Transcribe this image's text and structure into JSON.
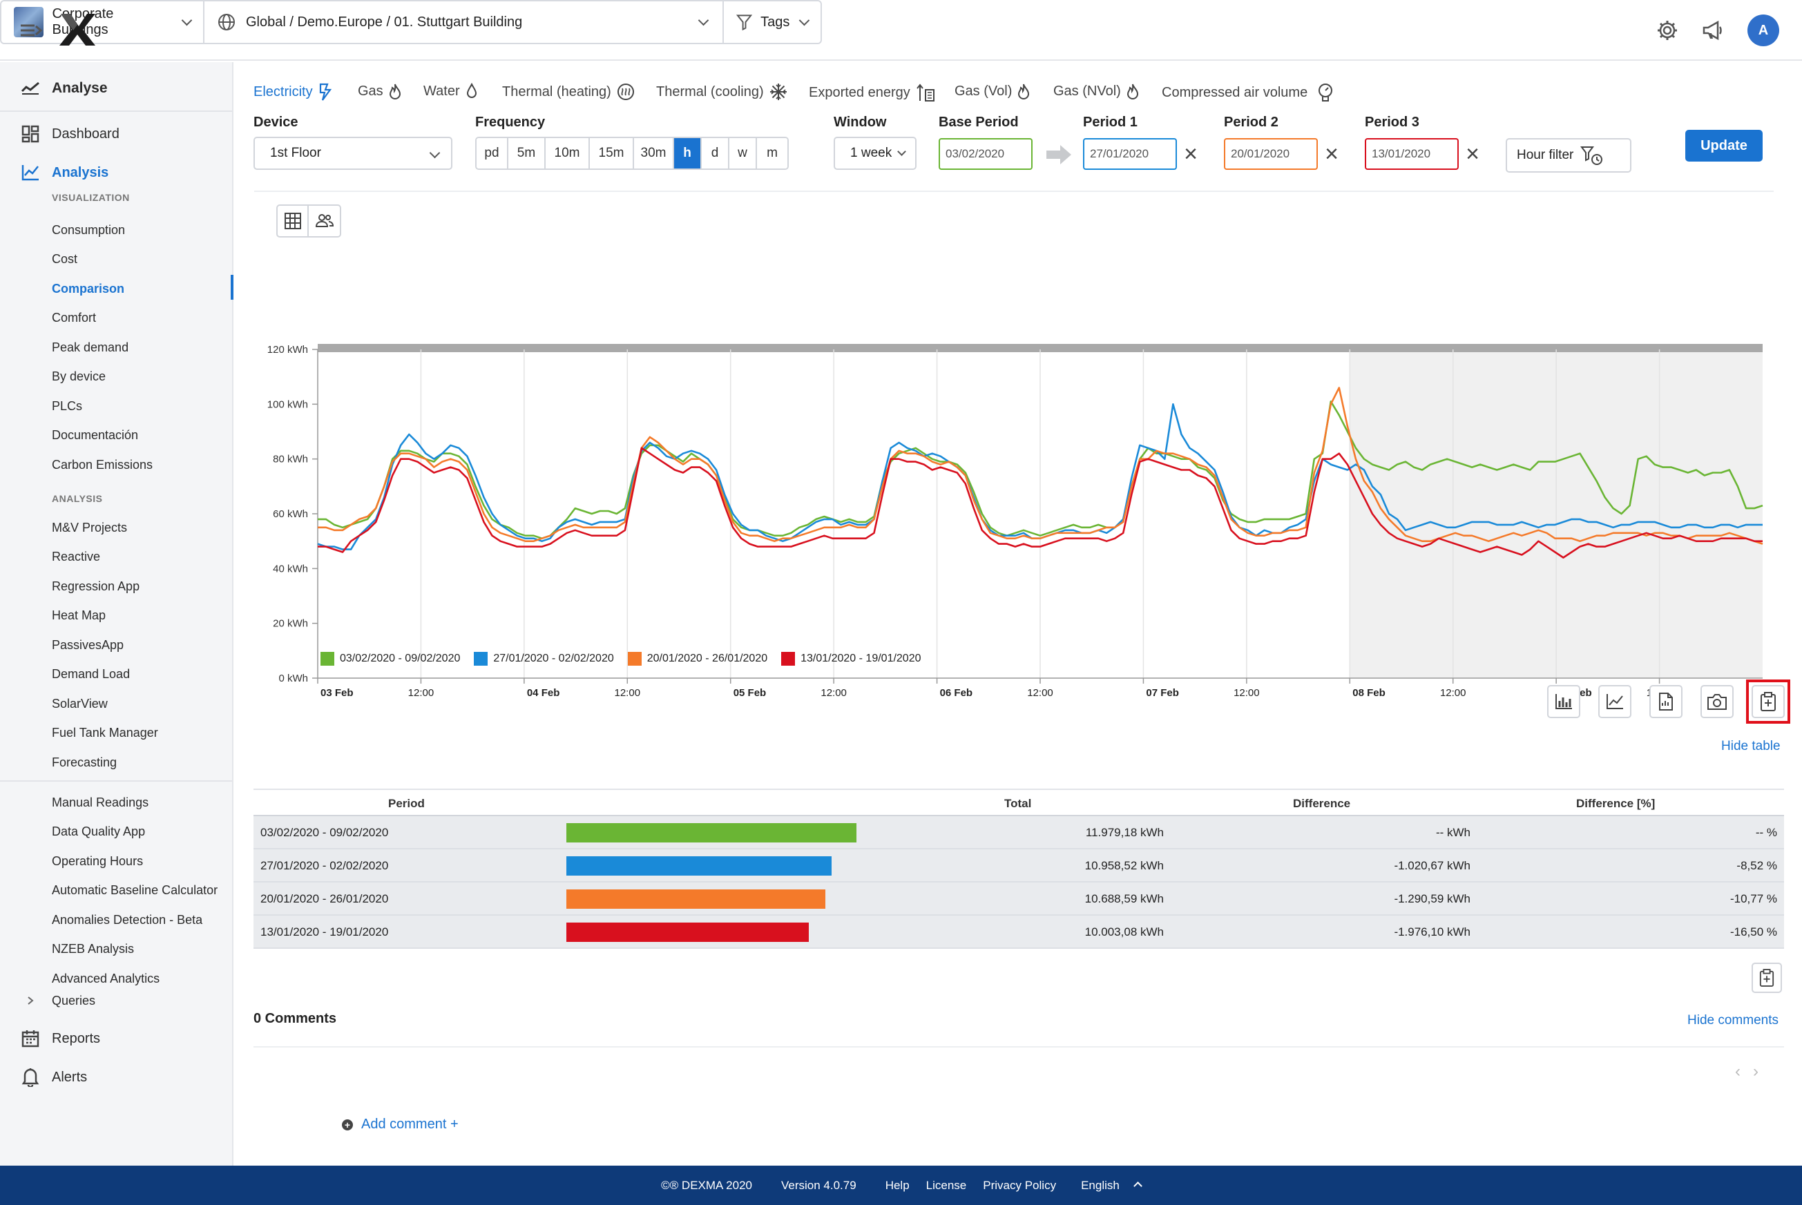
{
  "topbar": {
    "building_selector": "Corporate Buildings",
    "location_path": "Global / Demo.Europe / 01. Stuttgart Building",
    "tags_label": "Tags",
    "avatar_initial": "A"
  },
  "sidebar": {
    "analyse_header": "Analyse",
    "dashboard": "Dashboard",
    "analysis": "Analysis",
    "visualization_section": "VISUALIZATION",
    "visualization_items": [
      "Consumption",
      "Cost",
      "Comparison",
      "Comfort",
      "Peak demand",
      "By device",
      "PLCs",
      "Documentación",
      "Carbon Emissions"
    ],
    "analysis_section": "ANALYSIS",
    "analysis_items": [
      "M&V Projects",
      "Reactive",
      "Regression App",
      "Heat Map",
      "PassivesApp",
      "Demand Load",
      "SolarView",
      "Fuel Tank Manager",
      "Forecasting"
    ],
    "tool_items": [
      "Manual Readings",
      "Data Quality App",
      "Operating Hours",
      "Automatic Baseline Calculator",
      "Anomalies Detection - Beta",
      "NZEB Analysis",
      "Advanced Analytics"
    ],
    "queries": "Queries",
    "reports": "Reports",
    "alerts": "Alerts",
    "active_item": "Comparison"
  },
  "energy_tabs": [
    "Electricity",
    "Gas",
    "Water",
    "Thermal (heating)",
    "Thermal (cooling)",
    "Exported energy",
    "Gas (Vol)",
    "Gas (NVol)",
    "Compressed air volume"
  ],
  "controls": {
    "device_label": "Device",
    "device_value": "1st Floor",
    "frequency_label": "Frequency",
    "frequency_options": [
      "pd",
      "5m",
      "10m",
      "15m",
      "30m",
      "h",
      "d",
      "w",
      "m"
    ],
    "frequency_selected": "h",
    "window_label": "Window",
    "window_value": "1 week",
    "base_period_label": "Base Period",
    "base_period_value": "03/02/2020",
    "period1_label": "Period 1",
    "period1_value": "27/01/2020",
    "period2_label": "Period 2",
    "period2_value": "20/01/2020",
    "period3_label": "Period 3",
    "period3_value": "13/01/2020",
    "hour_filter_label": "Hour filter",
    "update_label": "Update"
  },
  "colors": {
    "base": "#6ab534",
    "period1": "#1a8ad8",
    "period2": "#f47a2a",
    "period3": "#d8101e",
    "accent": "#1a73d0",
    "footer": "#0e3a79"
  },
  "chart_data": {
    "type": "line",
    "title": "",
    "ylabel": "",
    "ylim": [
      0,
      120
    ],
    "y_ticks": [
      "0 kWh",
      "20 kWh",
      "40 kWh",
      "60 kWh",
      "80 kWh",
      "100 kWh",
      "120 kWh"
    ],
    "x_ticks": [
      "03 Feb",
      "12:00",
      "04 Feb",
      "12:00",
      "05 Feb",
      "12:00",
      "06 Feb",
      "12:00",
      "07 Feb",
      "12:00",
      "08 Feb",
      "12:00",
      "09 Feb",
      "12:00"
    ],
    "x_hours_range": [
      0,
      168
    ],
    "shaded_region_hours": [
      120,
      168
    ],
    "grid": "vertical",
    "legend_position": "bottom-left",
    "series": [
      {
        "name": "03/02/2020 - 09/02/2020",
        "color_key": "base",
        "values": [
          58,
          58,
          56,
          55,
          56,
          57,
          58,
          62,
          70,
          80,
          83,
          83,
          82,
          80,
          79,
          82,
          82,
          81,
          78,
          70,
          63,
          58,
          56,
          55,
          53,
          52,
          52,
          51,
          52,
          55,
          58,
          62,
          61,
          60,
          61,
          61,
          60,
          62,
          74,
          82,
          85,
          85,
          83,
          81,
          79,
          82,
          80,
          78,
          74,
          66,
          58,
          55,
          54,
          54,
          53,
          52,
          52,
          53,
          55,
          56,
          58,
          59,
          58,
          57,
          58,
          57,
          57,
          59,
          72,
          79,
          82,
          83,
          84,
          82,
          80,
          79,
          79,
          78,
          75,
          68,
          60,
          55,
          53,
          52,
          53,
          54,
          53,
          52,
          53,
          54,
          55,
          56,
          55,
          55,
          56,
          55,
          55,
          58,
          70,
          80,
          84,
          82,
          82,
          81,
          80,
          80,
          77,
          76,
          73,
          65,
          60,
          58,
          57,
          57,
          58,
          58,
          58,
          58,
          59,
          60,
          80,
          82,
          101,
          96,
          90,
          84,
          80,
          78,
          77,
          76,
          78,
          79,
          77,
          76,
          78,
          79,
          80,
          79,
          78,
          77,
          78,
          77,
          76,
          77,
          78,
          77,
          76,
          79,
          79,
          79,
          80,
          81,
          82,
          77,
          72,
          66,
          62,
          60,
          63,
          80,
          81,
          78,
          77,
          77,
          76,
          75,
          76,
          74,
          75,
          75,
          76,
          70,
          62,
          62,
          63
        ]
      },
      {
        "name": "27/01/2020 - 02/02/2020",
        "color_key": "period1",
        "values": [
          49,
          48,
          48,
          47,
          47,
          52,
          55,
          58,
          66,
          78,
          85,
          89,
          86,
          82,
          80,
          82,
          85,
          84,
          81,
          74,
          66,
          60,
          56,
          54,
          52,
          51,
          51,
          50,
          51,
          55,
          57,
          58,
          57,
          56,
          57,
          57,
          57,
          58,
          73,
          83,
          86,
          84,
          81,
          80,
          82,
          83,
          82,
          80,
          76,
          67,
          60,
          56,
          54,
          54,
          52,
          51,
          50,
          51,
          53,
          55,
          57,
          58,
          58,
          56,
          57,
          56,
          56,
          58,
          72,
          84,
          86,
          84,
          83,
          81,
          82,
          81,
          79,
          77,
          74,
          66,
          58,
          54,
          52,
          52,
          52,
          53,
          51,
          51,
          52,
          53,
          54,
          54,
          53,
          53,
          54,
          53,
          55,
          58,
          73,
          85,
          84,
          83,
          80,
          100,
          89,
          84,
          82,
          79,
          76,
          68,
          59,
          55,
          54,
          52,
          54,
          53,
          53,
          55,
          56,
          58,
          72,
          80,
          78,
          77,
          76,
          78,
          76,
          70,
          67,
          60,
          58,
          54,
          55,
          56,
          57,
          56,
          55,
          55,
          56,
          57,
          57,
          57,
          56,
          56,
          56,
          57,
          56,
          55,
          56,
          56,
          57,
          58,
          58,
          57,
          57,
          56,
          55,
          56,
          56,
          57,
          57,
          57,
          56,
          55,
          55,
          56,
          56,
          55,
          55,
          56,
          56,
          55,
          56,
          56,
          56
        ]
      },
      {
        "name": "20/01/2020 - 26/01/2020",
        "color_key": "period2",
        "values": [
          55,
          55,
          54,
          54,
          56,
          58,
          59,
          62,
          70,
          79,
          82,
          82,
          81,
          80,
          77,
          79,
          80,
          79,
          76,
          68,
          60,
          55,
          53,
          52,
          51,
          50,
          50,
          51,
          52,
          54,
          55,
          56,
          55,
          55,
          55,
          55,
          55,
          57,
          71,
          84,
          88,
          86,
          83,
          80,
          78,
          80,
          80,
          78,
          74,
          65,
          57,
          53,
          52,
          52,
          51,
          50,
          51,
          51,
          52,
          53,
          54,
          55,
          55,
          55,
          56,
          55,
          55,
          58,
          70,
          80,
          83,
          82,
          82,
          81,
          79,
          78,
          79,
          77,
          74,
          65,
          58,
          53,
          52,
          51,
          51,
          52,
          51,
          51,
          52,
          53,
          53,
          53,
          53,
          53,
          54,
          55,
          55,
          57,
          70,
          80,
          80,
          83,
          82,
          82,
          81,
          80,
          78,
          77,
          74,
          66,
          58,
          55,
          53,
          52,
          52,
          53,
          53,
          54,
          54,
          55,
          75,
          83,
          100,
          106,
          92,
          80,
          72,
          68,
          62,
          58,
          55,
          52,
          51,
          50,
          50,
          51,
          52,
          53,
          52,
          52,
          51,
          50,
          51,
          52,
          53,
          52,
          53,
          54,
          53,
          51,
          51,
          51,
          50,
          51,
          52,
          52,
          53,
          53,
          53,
          53,
          52,
          53,
          53,
          52,
          52,
          51,
          52,
          52,
          52,
          52,
          53,
          52,
          51,
          50,
          49
        ]
      },
      {
        "name": "13/01/2020 - 19/01/2020",
        "color_key": "period3",
        "values": [
          48,
          48,
          47,
          46,
          50,
          52,
          54,
          57,
          65,
          74,
          80,
          80,
          79,
          77,
          75,
          76,
          77,
          76,
          73,
          65,
          57,
          52,
          50,
          49,
          48,
          48,
          48,
          48,
          49,
          51,
          53,
          54,
          53,
          52,
          52,
          52,
          52,
          54,
          69,
          84,
          82,
          80,
          78,
          76,
          75,
          77,
          77,
          75,
          72,
          63,
          55,
          51,
          49,
          48,
          48,
          48,
          48,
          48,
          49,
          50,
          51,
          52,
          51,
          51,
          51,
          51,
          51,
          53,
          67,
          80,
          80,
          79,
          79,
          78,
          76,
          77,
          76,
          75,
          71,
          62,
          54,
          51,
          49,
          49,
          48,
          49,
          48,
          48,
          49,
          50,
          51,
          51,
          51,
          51,
          51,
          50,
          51,
          53,
          67,
          79,
          80,
          79,
          78,
          77,
          76,
          76,
          74,
          73,
          70,
          62,
          54,
          51,
          50,
          49,
          49,
          50,
          50,
          51,
          51,
          52,
          68,
          80,
          80,
          82,
          78,
          72,
          66,
          60,
          56,
          53,
          51,
          50,
          49,
          48,
          49,
          51,
          50,
          49,
          48,
          47,
          46,
          47,
          48,
          47,
          46,
          45,
          47,
          50,
          48,
          46,
          44,
          46,
          48,
          49,
          48,
          48,
          49,
          50,
          51,
          52,
          53,
          52,
          51,
          51,
          52,
          51,
          50,
          50,
          50,
          51,
          51,
          51,
          51,
          50,
          50
        ]
      }
    ]
  },
  "legend": [
    "03/02/2020 - 09/02/2020",
    "27/01/2020 - 02/02/2020",
    "20/01/2020 - 26/01/2020",
    "13/01/2020 - 19/01/2020"
  ],
  "links": {
    "hide_table": "Hide table",
    "hide_comments": "Hide comments",
    "add_comment": "Add comment +"
  },
  "table": {
    "headers": [
      "Period",
      "Total",
      "Difference",
      "Difference [%]"
    ],
    "rows": [
      {
        "period": "03/02/2020 - 09/02/2020",
        "total": "11.979,18 kWh",
        "difference": "-- kWh",
        "difference_pct": "-- %",
        "bar_fraction": 1.0,
        "color_key": "base"
      },
      {
        "period": "27/01/2020 - 02/02/2020",
        "total": "10.958,52 kWh",
        "difference": "-1.020,67 kWh",
        "difference_pct": "-8,52 %",
        "bar_fraction": 0.915,
        "color_key": "period1"
      },
      {
        "period": "20/01/2020 - 26/01/2020",
        "total": "10.688,59 kWh",
        "difference": "-1.290,59 kWh",
        "difference_pct": "-10,77 %",
        "bar_fraction": 0.892,
        "color_key": "period2"
      },
      {
        "period": "13/01/2020 - 19/01/2020",
        "total": "10.003,08 kWh",
        "difference": "-1.976,10 kWh",
        "difference_pct": "-16,50 %",
        "bar_fraction": 0.835,
        "color_key": "period3"
      }
    ]
  },
  "comments": {
    "title": "0 Comments"
  },
  "footer": {
    "copyright": "©® DEXMA 2020",
    "version": "Version 4.0.79",
    "help": "Help",
    "license": "License",
    "privacy": "Privacy Policy",
    "language": "English"
  }
}
